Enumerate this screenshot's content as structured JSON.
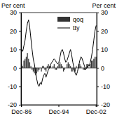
{
  "chart_data": {
    "type": "bar",
    "ylabel": "Per cent",
    "y2label": "Per cent",
    "categories": [
      "Dec-86",
      null,
      null,
      null,
      null,
      null,
      null,
      null,
      null,
      null,
      null,
      null,
      null,
      null,
      null,
      null,
      null,
      null,
      null,
      null,
      null,
      null,
      null,
      null,
      null,
      null,
      null,
      null,
      null,
      null,
      null,
      null,
      "Dec-94",
      null,
      null,
      null,
      null,
      null,
      null,
      null,
      null,
      null,
      null,
      null,
      null,
      null,
      null,
      null,
      null,
      null,
      null,
      null,
      null,
      null,
      null,
      null,
      null,
      null,
      null,
      null,
      null,
      null,
      null,
      null,
      "Dec-02"
    ],
    "series": [
      {
        "name": "qoq",
        "type": "bar",
        "color": "#333333",
        "values": [
          2,
          1,
          4,
          5,
          6,
          8,
          5,
          3,
          1,
          -1,
          -2,
          -3,
          -4,
          -3,
          -2,
          -1,
          0,
          -2,
          1,
          1,
          -1,
          -2,
          1,
          2,
          1,
          1,
          0,
          1,
          2,
          -1,
          -1,
          1,
          2,
          3,
          2,
          1,
          -2,
          -1,
          0,
          2,
          3,
          2,
          1,
          -2,
          -2,
          -1,
          -2,
          1,
          0,
          2,
          2,
          1,
          0,
          -1,
          -1,
          0,
          2,
          1,
          0,
          2,
          4,
          4,
          5,
          6,
          6
        ]
      },
      {
        "name": "tty",
        "type": "line",
        "color": "#000000",
        "values": [
          10,
          9,
          12,
          15,
          20,
          24,
          26,
          22,
          16,
          10,
          5,
          2,
          -2,
          -6,
          -9,
          -10,
          -8,
          -9,
          -6,
          -4,
          -3,
          -5,
          -3,
          -1,
          0,
          2,
          3,
          4,
          5,
          4,
          3,
          2,
          3,
          6,
          9,
          10,
          8,
          5,
          3,
          4,
          6,
          8,
          10,
          7,
          3,
          0,
          -3,
          -4,
          -2,
          1,
          4,
          6,
          5,
          3,
          1,
          -1,
          0,
          2,
          1,
          3,
          6,
          10,
          15,
          20,
          23
        ]
      }
    ],
    "ylim": [
      -20,
      30
    ],
    "yticks": [
      -20,
      -10,
      0,
      10,
      20,
      30
    ],
    "y2lim": [
      -20,
      30
    ],
    "y2ticks": [
      -20,
      -10,
      0,
      10,
      20,
      30
    ],
    "legend": "upper right"
  }
}
